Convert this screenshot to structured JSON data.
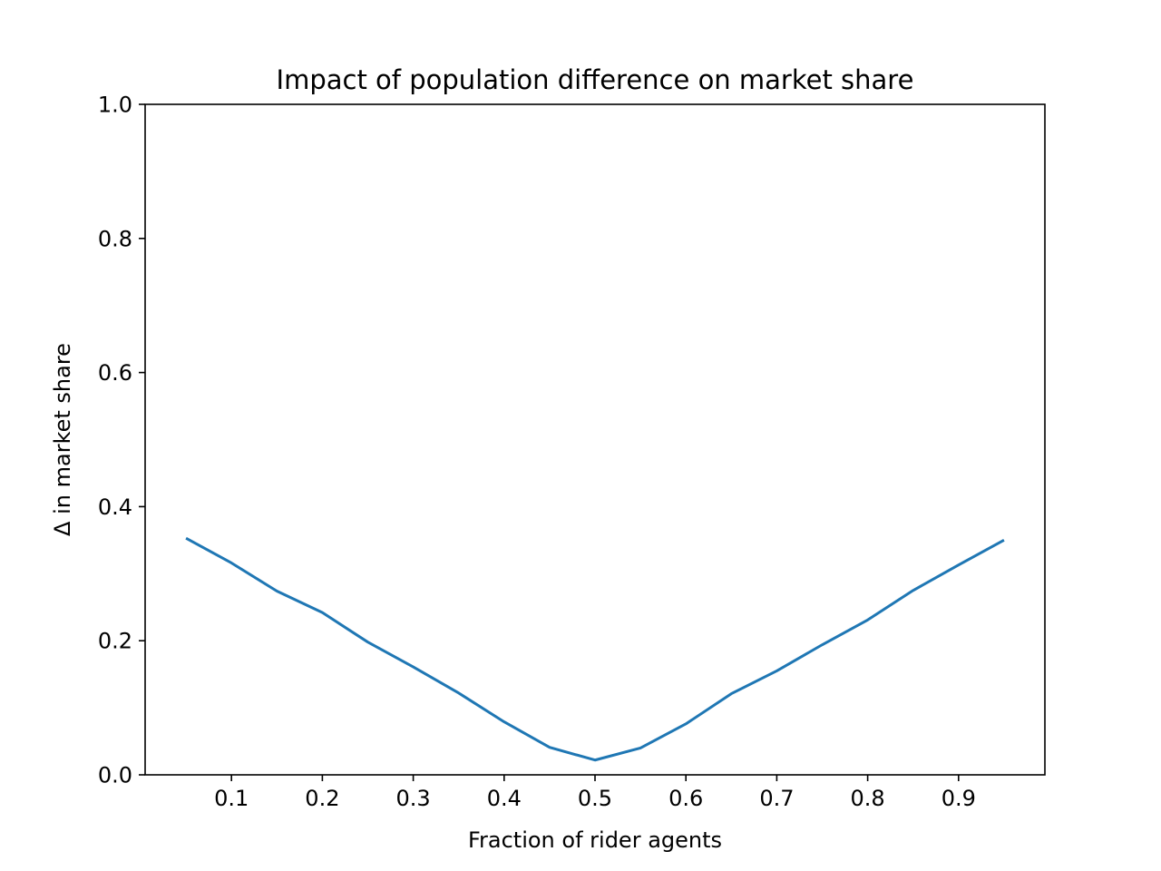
{
  "chart_data": {
    "type": "line",
    "title": "Impact of population difference on market share",
    "xlabel": "Fraction of rider agents",
    "ylabel": "Δ in market share",
    "xlim": [
      0.005,
      0.995
    ],
    "ylim": [
      0.0,
      1.0
    ],
    "xticks": [
      0.1,
      0.2,
      0.3,
      0.4,
      0.5,
      0.6,
      0.7,
      0.8,
      0.9
    ],
    "xtick_labels": [
      "0.1",
      "0.2",
      "0.3",
      "0.4",
      "0.5",
      "0.6",
      "0.7",
      "0.8",
      "0.9"
    ],
    "yticks": [
      0.0,
      0.2,
      0.4,
      0.6,
      0.8,
      1.0
    ],
    "ytick_labels": [
      "0.0",
      "0.2",
      "0.4",
      "0.6",
      "0.8",
      "1.0"
    ],
    "grid": false,
    "series": [
      {
        "color": "#1f77b4",
        "x": [
          0.05,
          0.1,
          0.15,
          0.2,
          0.25,
          0.3,
          0.35,
          0.4,
          0.45,
          0.5,
          0.55,
          0.6,
          0.65,
          0.7,
          0.75,
          0.8,
          0.85,
          0.9,
          0.95
        ],
        "y": [
          0.353,
          0.316,
          0.274,
          0.242,
          0.198,
          0.161,
          0.122,
          0.079,
          0.041,
          0.022,
          0.04,
          0.076,
          0.121,
          0.155,
          0.194,
          0.231,
          0.275,
          0.313,
          0.35
        ]
      }
    ]
  }
}
